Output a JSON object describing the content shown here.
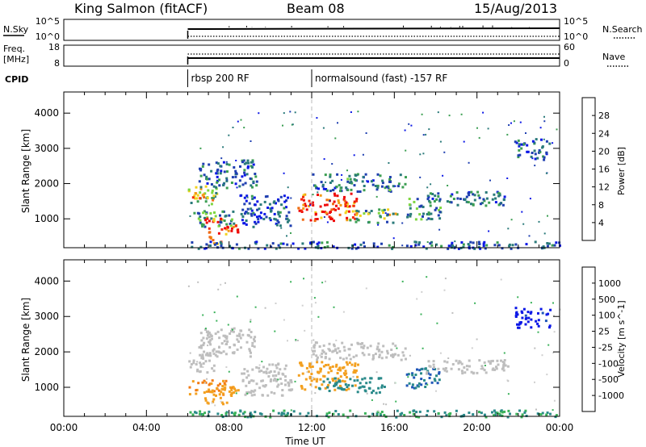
{
  "header": {
    "site": "King Salmon (fitACF)",
    "beam": "Beam 08",
    "date": "15/Aug/2013"
  },
  "panels": {
    "nsky_label": "N.Sky",
    "nsearch_label": "N.Search",
    "count_ticks": [
      "10^5",
      "10^0"
    ],
    "freq_label_1": "Freq.",
    "freq_label_2": "[MHz]",
    "freq_ticks": [
      "18",
      "8"
    ],
    "nave_label": "Nave",
    "nave_ticks": [
      "60",
      "0"
    ],
    "cpid_label": "CPID",
    "cpid_segments": [
      {
        "label": "rbsp 200 RF",
        "start_hour": 6.0,
        "end_hour": 12.0
      },
      {
        "label": "normalsound (fast) -157 RF",
        "start_hour": 12.0,
        "end_hour": 24.0
      }
    ]
  },
  "colors": {
    "power_scale": [
      "#0b17e6",
      "#1f3fb0",
      "#2a7a7a",
      "#3b9e52",
      "#7ed640",
      "#f2d21c",
      "#f39a12",
      "#f06a14",
      "#f42d10",
      "#ee0a0a"
    ],
    "velocity_scale": [
      "#0b17e6",
      "#1f56b8",
      "#2a8a8a",
      "#3bb25a",
      "#bebebe",
      "#cfcfcf",
      "#f3a020",
      "#f37a12",
      "#f04414",
      "#ee0a0a"
    ]
  },
  "chart_data": [
    {
      "type": "heatmap",
      "title": "",
      "xlabel": "Time UT",
      "ylabel": "Slant Range [km]",
      "x_ticks": [
        "00:00",
        "04:00",
        "08:00",
        "12:00",
        "16:00",
        "20:00",
        "00:00"
      ],
      "xlim": [
        0,
        24
      ],
      "y_ticks": [
        "1000",
        "2000",
        "3000",
        "4000"
      ],
      "ylim": [
        180,
        4600
      ],
      "colorbar": {
        "label": "Power [dB]",
        "ticks": [
          "4",
          "8",
          "12",
          "16",
          "20",
          "24",
          "28"
        ],
        "range": [
          0,
          30
        ]
      },
      "regions": [
        {
          "t0": 6.0,
          "t1": 7.4,
          "r0": 1450,
          "r1": 2000,
          "value": 14
        },
        {
          "t0": 6.1,
          "t1": 7.0,
          "r0": 1550,
          "r1": 1750,
          "value": 18
        },
        {
          "t0": 6.0,
          "t1": 8.2,
          "r0": 800,
          "r1": 1250,
          "value": 8
        },
        {
          "t0": 6.8,
          "t1": 8.4,
          "r0": 550,
          "r1": 1050,
          "value": 24
        },
        {
          "t0": 7.0,
          "t1": 7.8,
          "r0": 300,
          "r1": 550,
          "value": 28
        },
        {
          "t0": 6.5,
          "t1": 9.3,
          "r0": 1900,
          "r1": 2700,
          "value": 6
        },
        {
          "t0": 8.5,
          "t1": 11.0,
          "r0": 800,
          "r1": 1700,
          "value": 5
        },
        {
          "t0": 11.3,
          "t1": 14.2,
          "r0": 950,
          "r1": 1750,
          "value": 27
        },
        {
          "t0": 12.0,
          "t1": 16.5,
          "r0": 1800,
          "r1": 2300,
          "value": 7
        },
        {
          "t0": 13.8,
          "t1": 16.2,
          "r0": 900,
          "r1": 1300,
          "value": 12
        },
        {
          "t0": 16.5,
          "t1": 18.2,
          "r0": 1000,
          "r1": 1600,
          "value": 9
        },
        {
          "t0": 17.5,
          "t1": 21.5,
          "r0": 1400,
          "r1": 1800,
          "value": 7
        },
        {
          "t0": 21.8,
          "t1": 23.5,
          "r0": 2700,
          "r1": 3300,
          "value": 6
        },
        {
          "t0": 6.0,
          "t1": 24.0,
          "r0": 180,
          "r1": 380,
          "value": 5
        }
      ]
    },
    {
      "type": "heatmap",
      "title": "",
      "xlabel": "Time UT",
      "ylabel": "Slant Range [km]",
      "x_ticks": [
        "00:00",
        "04:00",
        "08:00",
        "12:00",
        "16:00",
        "20:00",
        "00:00"
      ],
      "xlim": [
        0,
        24
      ],
      "y_ticks": [
        "1000",
        "2000",
        "3000",
        "4000"
      ],
      "ylim": [
        180,
        4600
      ],
      "colorbar": {
        "label": "Velocity [m s^-1]",
        "ticks": [
          "1000",
          "500",
          "100",
          "25",
          "-25",
          "-100",
          "-500",
          "-1000"
        ]
      },
      "regions": [
        {
          "t0": 6.0,
          "t1": 7.4,
          "r0": 1450,
          "r1": 2000,
          "value": 0
        },
        {
          "t0": 6.0,
          "t1": 8.2,
          "r0": 800,
          "r1": 1250,
          "value": -300
        },
        {
          "t0": 6.8,
          "t1": 8.4,
          "r0": 550,
          "r1": 1050,
          "value": -150
        },
        {
          "t0": 6.5,
          "t1": 9.3,
          "r0": 1900,
          "r1": 2700,
          "value": 0
        },
        {
          "t0": 8.5,
          "t1": 11.0,
          "r0": 800,
          "r1": 1700,
          "value": 0
        },
        {
          "t0": 11.3,
          "t1": 14.2,
          "r0": 950,
          "r1": 1750,
          "value": -200
        },
        {
          "t0": 12.3,
          "t1": 15.5,
          "r0": 850,
          "r1": 1300,
          "value": 200
        },
        {
          "t0": 12.0,
          "t1": 16.5,
          "r0": 1800,
          "r1": 2300,
          "value": 0
        },
        {
          "t0": 16.5,
          "t1": 18.2,
          "r0": 1000,
          "r1": 1600,
          "value": 300
        },
        {
          "t0": 17.5,
          "t1": 21.5,
          "r0": 1400,
          "r1": 1800,
          "value": 0
        },
        {
          "t0": 21.8,
          "t1": 23.5,
          "r0": 2700,
          "r1": 3300,
          "value": 800
        },
        {
          "t0": 6.0,
          "t1": 24.0,
          "r0": 180,
          "r1": 380,
          "value": 60
        }
      ]
    }
  ]
}
